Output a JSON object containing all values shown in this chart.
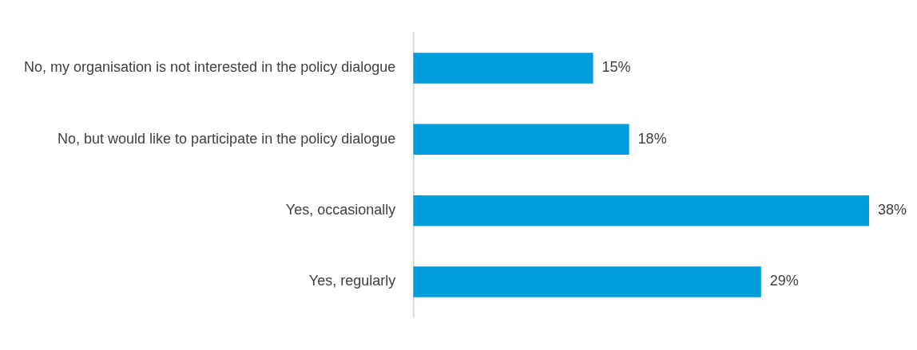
{
  "chart_data": {
    "type": "bar",
    "orientation": "horizontal",
    "categories": [
      "No, my organisation is not interested in the policy dialogue",
      "No, but would like to participate in the policy dialogue",
      "Yes, occasionally",
      "Yes, regularly"
    ],
    "values": [
      15,
      18,
      38,
      29
    ],
    "value_labels": [
      "15%",
      "18%",
      "38%",
      "29%"
    ],
    "color": "#009ddc"
  }
}
